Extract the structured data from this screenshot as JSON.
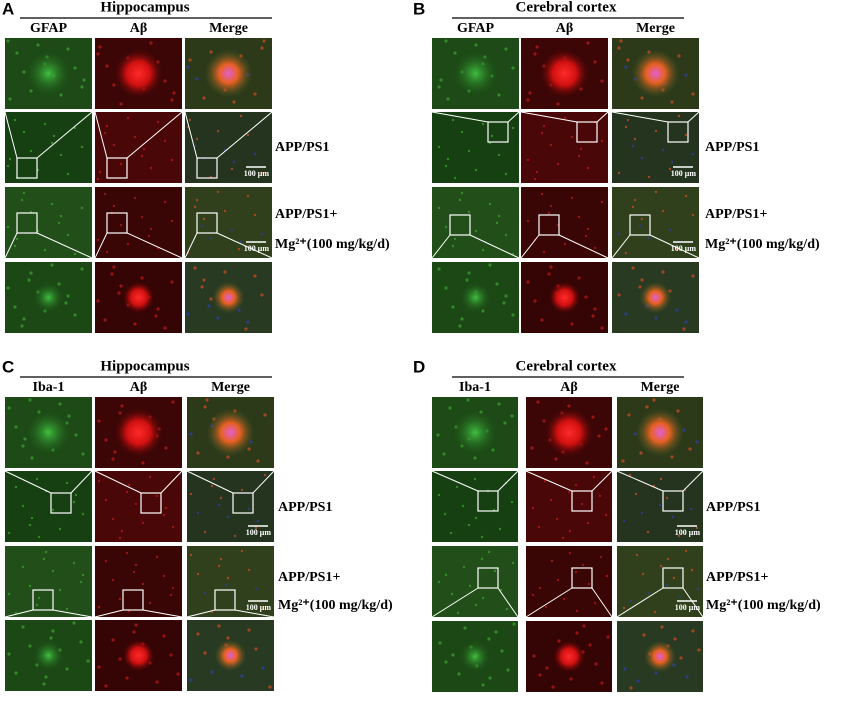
{
  "panels": [
    {
      "label": "A",
      "title": "Hippocampus",
      "columns": [
        "GFAP",
        "Aβ",
        "Merge"
      ],
      "row_labels": [
        "APP/PS1",
        "APP/PS1+",
        "Mg²⁺(100 mg/kg/d)"
      ],
      "scale_bar": "100 μm"
    },
    {
      "label": "B",
      "title": "Cerebral cortex",
      "columns": [
        "GFAP",
        "Aβ",
        "Merge"
      ],
      "row_labels": [
        "APP/PS1",
        "APP/PS1+",
        "Mg²⁺(100 mg/kg/d)"
      ],
      "scale_bar": "100 μm"
    },
    {
      "label": "C",
      "title": "Hippocampus",
      "columns": [
        "Iba-1",
        "Aβ",
        "Merge"
      ],
      "row_labels": [
        "APP/PS1",
        "APP/PS1+",
        "Mg²⁺(100 mg/kg/d)"
      ],
      "scale_bar": "100 μm"
    },
    {
      "label": "D",
      "title": "Cerebral cortex",
      "columns": [
        "Iba-1",
        "Aβ",
        "Merge"
      ],
      "row_labels": [
        "APP/PS1",
        "APP/PS1+",
        "Mg²⁺(100 mg/kg/d)"
      ],
      "scale_bar": "100 μm"
    }
  ]
}
